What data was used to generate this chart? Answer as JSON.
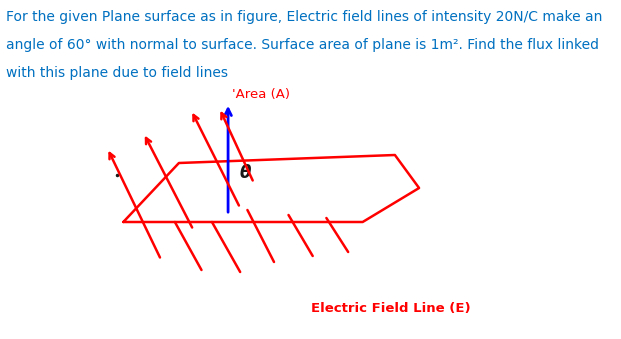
{
  "bg_color": "#ffffff",
  "text_color": "#0070c0",
  "red_color": "#ff0000",
  "blue_color": "#0000ff",
  "black_color": "#1a1a1a",
  "title_lines": [
    "For the given Plane surface as in figure, Electric field lines of intensity 20N/C make an",
    "angle of 60° with normal to surface. Surface area of plane is 1m². Find the flux linked",
    "with this plane due to field lines"
  ],
  "area_label": "'Area (A)",
  "field_label": "Electric Field Line (E)",
  "theta_label": "θ",
  "figsize": [
    6.21,
    3.39
  ],
  "dpi": 100
}
